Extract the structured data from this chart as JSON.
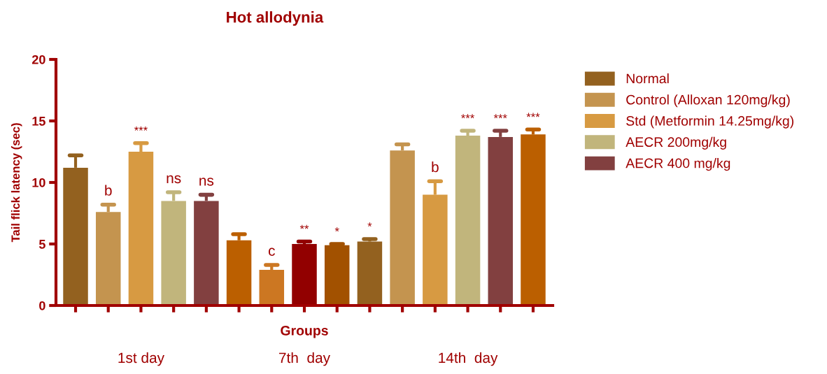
{
  "chart_data": {
    "type": "bar",
    "title": "Hot allodynia",
    "xlabel": "Groups",
    "ylabel": "Tail flick latency (sec)",
    "categories": [
      null,
      null,
      null,
      null,
      null,
      null,
      null,
      null,
      null,
      null,
      null,
      null,
      null,
      null,
      null
    ],
    "series": [
      {
        "name": "Normal",
        "color": "#93611f",
        "values": [
          11.2,
          null,
          null,
          null,
          null,
          null,
          null,
          null,
          null,
          5.2,
          null,
          null,
          null,
          null,
          null
        ],
        "errors": [
          [
            11.2,
            12.2
          ],
          null,
          null,
          null,
          null,
          null,
          null,
          null,
          null,
          [
            5.2,
            5.4
          ],
          null,
          null,
          null,
          null,
          null
        ],
        "value_labels": [
          null,
          null,
          null,
          null,
          null,
          null,
          null,
          null,
          null,
          "*",
          null,
          null,
          null,
          null,
          null
        ]
      },
      {
        "name": "Control (Alloxan 120mg/kg)",
        "color": "#c4944f",
        "values": [
          null,
          7.6,
          null,
          null,
          null,
          null,
          null,
          null,
          null,
          null,
          12.6,
          null,
          null,
          null,
          null
        ],
        "errors": [
          null,
          [
            7.6,
            8.2
          ],
          null,
          null,
          null,
          null,
          null,
          null,
          null,
          null,
          [
            12.6,
            13.1
          ],
          null,
          null,
          null,
          null
        ],
        "value_labels": [
          null,
          "b",
          null,
          null,
          null,
          null,
          null,
          null,
          null,
          null,
          null,
          null,
          null,
          null,
          null
        ]
      },
      {
        "name": "Std (Metformin 14.25mg/kg)",
        "color": "#d79a42",
        "values": [
          null,
          null,
          12.5,
          null,
          null,
          null,
          null,
          null,
          null,
          null,
          null,
          9.0,
          null,
          null,
          null
        ],
        "errors": [
          null,
          null,
          [
            12.5,
            13.2
          ],
          null,
          null,
          null,
          null,
          null,
          null,
          null,
          null,
          [
            9.0,
            10.1
          ],
          null,
          null,
          null
        ],
        "value_labels": [
          null,
          null,
          "***",
          null,
          null,
          null,
          null,
          null,
          null,
          null,
          null,
          "b",
          null,
          null,
          null
        ]
      },
      {
        "name": "AECR 200mg/kg",
        "color": "#c1b57c",
        "values": [
          null,
          null,
          null,
          8.5,
          null,
          null,
          null,
          null,
          null,
          null,
          null,
          null,
          13.8,
          null,
          null
        ],
        "errors": [
          null,
          null,
          null,
          [
            8.5,
            9.2
          ],
          null,
          null,
          null,
          null,
          null,
          null,
          null,
          null,
          [
            13.8,
            14.2
          ],
          null,
          null
        ],
        "value_labels": [
          null,
          null,
          null,
          "ns",
          null,
          null,
          null,
          null,
          null,
          null,
          null,
          null,
          "***",
          null,
          null
        ]
      },
      {
        "name": "AECR 400 mg/kg",
        "color": "#824040",
        "values": [
          null,
          null,
          null,
          null,
          8.5,
          null,
          null,
          null,
          null,
          null,
          null,
          null,
          null,
          13.7,
          null
        ],
        "errors": [
          null,
          null,
          null,
          null,
          [
            8.5,
            9.0
          ],
          null,
          null,
          null,
          null,
          null,
          null,
          null,
          null,
          [
            13.7,
            14.2
          ],
          null
        ],
        "value_labels": [
          null,
          null,
          null,
          null,
          "ns",
          null,
          null,
          null,
          null,
          null,
          null,
          null,
          null,
          "***",
          null
        ]
      },
      {
        "colors": [
          "#bb5f00",
          "#bb5f00",
          "#bb5f00",
          "#bb5f00",
          "#bb5f00",
          "#bb5f00",
          "#cc7722",
          "#920000",
          "#a25100",
          "#bb5f00",
          "#bb5f00",
          "#bb5f00",
          "#bb5f00",
          "#bb5f00",
          "#bb5f00"
        ],
        "values": [
          null,
          null,
          null,
          null,
          null,
          5.3,
          2.9,
          5.0,
          4.9,
          null,
          null,
          null,
          null,
          null,
          13.9
        ],
        "errors": [
          null,
          null,
          null,
          null,
          null,
          [
            5.3,
            5.8
          ],
          [
            2.9,
            3.3
          ],
          [
            5.0,
            5.2
          ],
          [
            4.9,
            5.0
          ],
          null,
          null,
          null,
          null,
          null,
          [
            13.9,
            14.3
          ]
        ],
        "value_labels": [
          null,
          null,
          null,
          null,
          null,
          null,
          "c",
          "**",
          "*",
          null,
          null,
          null,
          null,
          null,
          "***"
        ]
      }
    ],
    "ylim": [
      0,
      20
    ],
    "yticks": [
      0,
      5,
      10,
      15,
      20
    ],
    "grid": false,
    "legend": "right",
    "annotations": [
      "1st day",
      "7th  day",
      "14th  day"
    ]
  }
}
